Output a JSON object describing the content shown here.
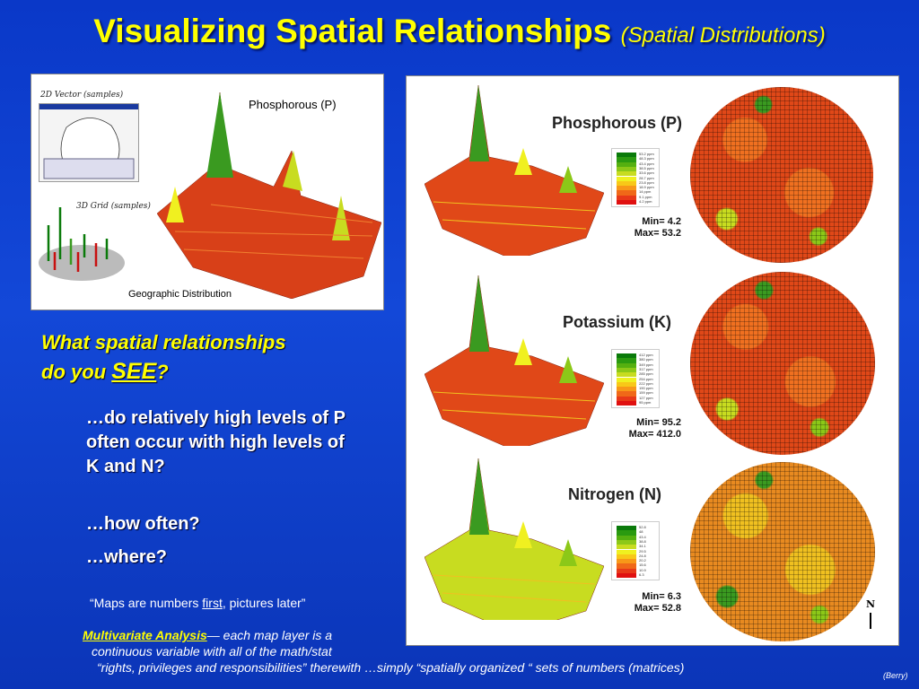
{
  "title": {
    "main": "Visualizing Spatial Relationships",
    "sub": "(Spatial Distributions)"
  },
  "left_panel": {
    "label_2d": "2D Vector (samples)",
    "label_3d": "3D Grid (samples)",
    "surface_title": "Phosphorous (P)",
    "caption": "Geographic Distribution"
  },
  "question": {
    "line1": "What spatial relationships",
    "line2_pre": "do you ",
    "line2_em": "SEE",
    "line2_post": "?"
  },
  "bullets": [
    "…do relatively high levels of P often occur with high levels of K and N?",
    "…how often?",
    "…where?"
  ],
  "quote": {
    "pre": "“Maps are numbers ",
    "em": "first",
    "post": ", pictures later”"
  },
  "multivariate": {
    "term": "Multivariate Analysis",
    "text1": "— each map layer is a",
    "text2": "continuous variable with all of the math/stat",
    "text3": "“rights, privileges and responsibilities” therewith  …simply “spatially organized “ sets of numbers (matrices)"
  },
  "credit": "(Berry)",
  "north_label": "N",
  "colors": {
    "title": "#ffff00",
    "background": "#1348d8",
    "ramp": [
      "#0a7a0a",
      "#2a9a10",
      "#55b010",
      "#8cc818",
      "#c8dc20",
      "#f0f020",
      "#f8c818",
      "#f89818",
      "#f06818",
      "#e83818",
      "#e01010"
    ]
  },
  "layers": [
    {
      "name": "Phosphorous (P)",
      "min": "Min= 4.2",
      "max": "Max= 53.2",
      "legend": [
        "53.2 ppm",
        "48.3 ppm",
        "43.4 ppm",
        "38.5 ppm",
        "33.6 ppm",
        "28.7 ppm",
        "23.8 ppm",
        "18.9 ppm",
        "14 ppm",
        "9.1 ppm",
        "4.2 ppm"
      ]
    },
    {
      "name": "Potassium (K)",
      "min": "Min= 95.2",
      "max": "Max= 412.0",
      "legend": [
        "412 ppm",
        "380 ppm",
        "349 ppm",
        "317 ppm",
        "285 ppm",
        "254 ppm",
        "222 ppm",
        "190 ppm",
        "159 ppm",
        "127 ppm",
        "95 ppm"
      ]
    },
    {
      "name": "Nitrogen (N)",
      "min": "Min= 6.3",
      "max": "Max= 52.8",
      "legend": [
        "52.8",
        "48",
        "43.4",
        "38.8",
        "34.1",
        "29.5",
        "24.8",
        "20.2",
        "15.6",
        "10.9",
        "6.3"
      ]
    }
  ]
}
